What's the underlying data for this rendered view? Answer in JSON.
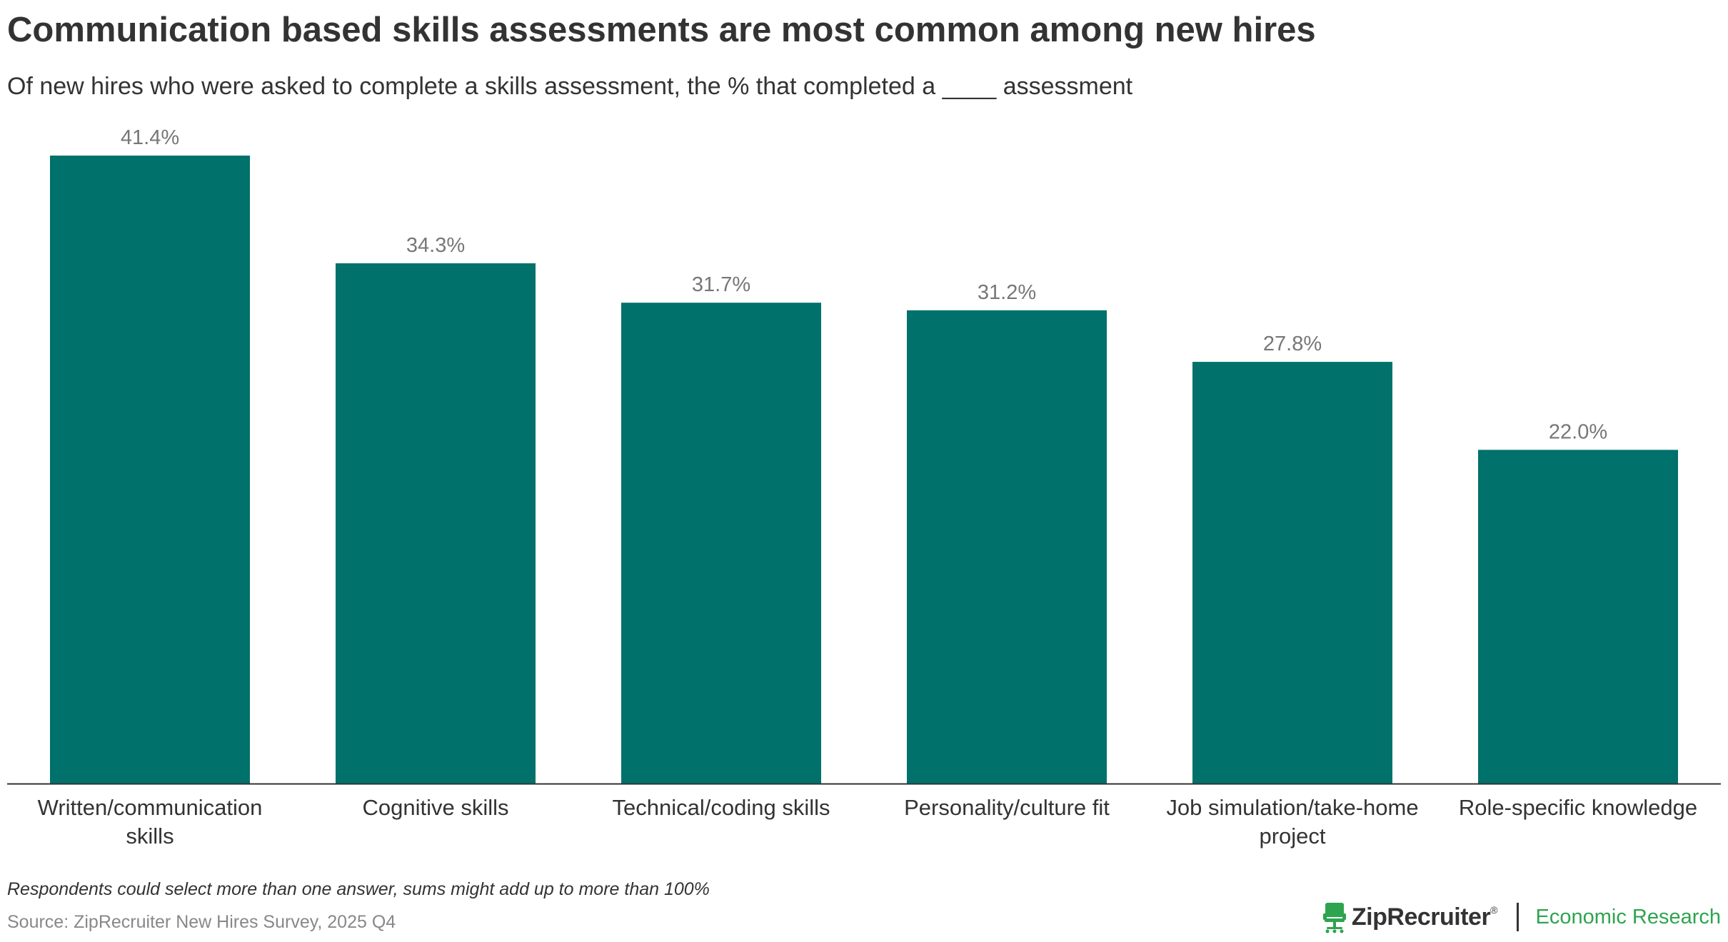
{
  "title": "Communication based skills assessments are most common among new hires",
  "subtitle": "Of new hires who were asked to complete a skills assessment, the % that completed a ____ assessment",
  "note": "Respondents could select more than one answer, sums might add up to more than 100%",
  "source": "Source: ZipRecruiter New Hires Survey, 2025 Q4",
  "brand": {
    "name": "ZipRecruiter",
    "registered_mark": "®",
    "department": "Economic Research",
    "logo_icon": "ziprecruiter-chair-icon",
    "logo_color": "#2ea44f"
  },
  "colors": {
    "bar": "#00716b",
    "value_label": "#777777",
    "category_label": "#333333",
    "axis": "#333333"
  },
  "chart_data": {
    "type": "bar",
    "categories": [
      "Written/communication skills",
      "Cognitive skills",
      "Technical/coding skills",
      "Personality/culture fit",
      "Job simulation/take-home project",
      "Role-specific knowledge"
    ],
    "category_lines": [
      [
        "Written/communication",
        "skills"
      ],
      [
        "Cognitive skills"
      ],
      [
        "Technical/coding skills"
      ],
      [
        "Personality/culture fit"
      ],
      [
        "Job simulation/take-home",
        "project"
      ],
      [
        "Role-specific knowledge"
      ]
    ],
    "values": [
      41.4,
      34.3,
      31.7,
      31.2,
      27.8,
      22.0
    ],
    "value_labels": [
      "41.4%",
      "34.3%",
      "31.7%",
      "31.2%",
      "27.8%",
      "22.0%"
    ],
    "unit": "%",
    "ylim": [
      0,
      41.4
    ],
    "grid": false,
    "legend": "none"
  }
}
